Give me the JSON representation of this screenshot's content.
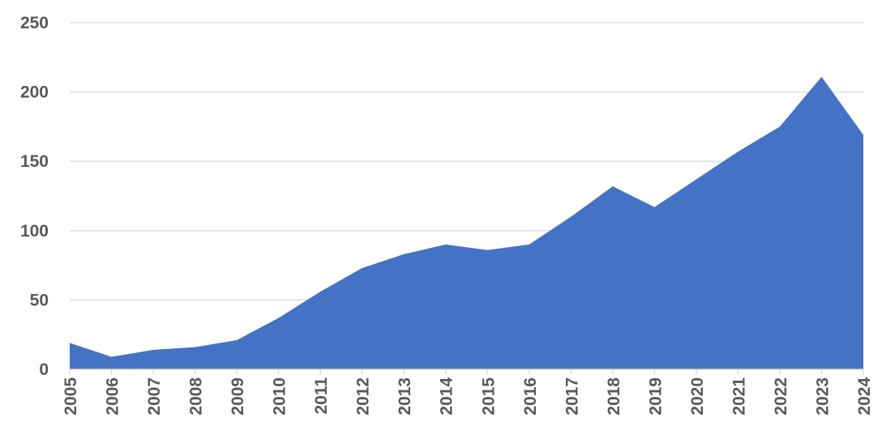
{
  "chart_data": {
    "type": "area",
    "title": "",
    "xlabel": "",
    "ylabel": "",
    "categories": [
      "2005",
      "2006",
      "2007",
      "2008",
      "2009",
      "2010",
      "2011",
      "2012",
      "2013",
      "2014",
      "2015",
      "2016",
      "2017",
      "2018",
      "2019",
      "2020",
      "2021",
      "2022",
      "2023",
      "2024"
    ],
    "series": [
      {
        "values": [
          19,
          9,
          14,
          16,
          21,
          37,
          56,
          73,
          83,
          90,
          86,
          90,
          110,
          132,
          117,
          137,
          157,
          175,
          211,
          169
        ]
      }
    ],
    "ylim": [
      0,
      250
    ],
    "yticks": [
      0,
      50,
      100,
      150,
      200,
      250
    ],
    "grid": true,
    "legend": "none",
    "colors": {
      "fill": "#4472c4",
      "grid": "#d9d9d9",
      "tick_text": "#595959"
    }
  }
}
